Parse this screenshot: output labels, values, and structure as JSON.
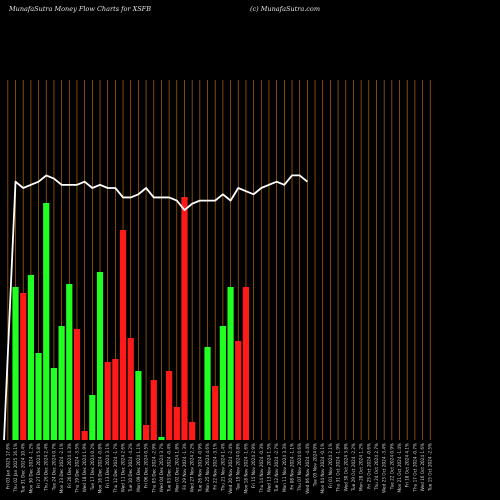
{
  "header": {
    "title": "MunafaSutra  Money Flow  Charts for XSFB",
    "site": "(c) MunafaSutra.com"
  },
  "colors": {
    "background": "#000000",
    "grid": "#b36a12",
    "up": "#22ff22",
    "down": "#ff1a1a",
    "line": "#ffffff"
  },
  "chart_data": {
    "type": "bar",
    "title": "MunafaSutra  Money Flow  Charts for XSFB",
    "xlabel": "",
    "ylabel": "",
    "grid": true,
    "bar_ylim": [
      0,
      100
    ],
    "line_ylim": [
      0,
      100
    ],
    "categories": [
      "Fri 03 Jan 2025",
      "Thu 02 Jan 2025",
      "Tue 31 Dec 2024",
      "Mon 30 Dec 2024",
      "Fri 27 Dec 2024",
      "Thu 26 Dec 2024",
      "Tue 24 Dec 2024",
      "Mon 23 Dec 2024",
      "Fri 20 Dec 2024",
      "Thu 19 Dec 2024",
      "Wed 18 Dec 2024",
      "Tue 17 Dec 2024",
      "Mon 16 Dec 2024",
      "Fri 13 Dec 2024",
      "Thu 12 Dec 2024",
      "Wed 11 Dec 2024",
      "Tue 10 Dec 2024",
      "Mon 09 Dec 2024",
      "Fri 06 Dec 2024",
      "Thu 05 Dec 2024",
      "Wed 04 Dec 2024",
      "Tue 03 Dec 2024",
      "Mon 02 Dec 2024",
      "Fri 29 Nov 2024",
      "Wed 27 Nov 2024",
      "Tue 26 Nov 2024",
      "Mon 25 Nov 2024",
      "Fri 22 Nov 2024",
      "Thu 21 Nov 2024",
      "Wed 20 Nov 2024",
      "Tue 19 Nov 2024",
      "Mon 18 Nov 2024",
      "Fri 15 Nov 2024",
      "Thu 14 Nov 2024",
      "Wed 13 Nov 2024",
      "Tue 12 Nov 2024",
      "Mon 11 Nov 2024",
      "Fri 08 Nov 2024",
      "Thu 07 Nov 2024",
      "Wed 06 Nov 2024",
      "Tue 05 Nov 2024",
      "Mon 04 Nov 2024",
      "Fri 01 Nov 2024",
      "Thu 31 Oct 2024",
      "Wed 30 Oct 2024",
      "Tue 29 Oct 2024",
      "Mon 28 Oct 2024",
      "Fri 25 Oct 2024",
      "Thu 24 Oct 2024",
      "Wed 23 Oct 2024",
      "Tue 22 Oct 2024",
      "Mon 21 Oct 2024",
      "Fri 18 Oct 2024",
      "Thu 17 Oct 2024",
      "Wed 16 Oct 2024",
      "Tue 15 Oct 2024"
    ],
    "x_tick_labels": [
      "Fri 03 Jan 2025 17.6%",
      "Thu 02 Jan 2025 16.1%",
      "Tue 31 Dec 2024 10.4%",
      "Mon 30 Dec 2024 -1.2%",
      "Fri 27 Dec 2024 5.8%",
      "Thu 26 Dec 2024 2.4%",
      "Tue 24 Dec 2024 0.7%",
      "Mon 23 Dec 2024 -2.1%",
      "Fri 20 Dec 2024 4.3%",
      "Thu 19 Dec 2024 -3.5%",
      "Wed 18 Dec 2024 1.9%",
      "Tue 17 Dec 2024 0.2%",
      "Mon 16 Dec 2024 -0.8%",
      "Fri 13 Dec 2024 3.1%",
      "Thu 12 Dec 2024 -1.7%",
      "Wed 11 Dec 2024 2.6%",
      "Tue 10 Dec 2024 -4.2%",
      "Mon 09 Dec 2024 1.1%",
      "Fri 06 Dec 2024 0.5%",
      "Thu 05 Dec 2024 -2.9%",
      "Wed 04 Dec 2024 3.7%",
      "Tue 03 Dec 2024 -0.4%",
      "Mon 02 Dec 2024 1.8%",
      "Fri 29 Nov 2024 -1.3%",
      "Wed 27 Nov 2024 2.2%",
      "Tue 26 Nov 2024 -0.9%",
      "Mon 25 Nov 2024 4.6%",
      "Fri 22 Nov 2024 -3.1%",
      "Thu 21 Nov 2024 1.4%",
      "Wed 20 Nov 2024 -2.4%",
      "Tue 19 Nov 2024 0.8%",
      "Mon 18 Nov 2024 -1.6%",
      "Fri 15 Nov 2024 2.9%",
      "Thu 14 Nov 2024 -0.3%",
      "Wed 13 Nov 2024 1.5%",
      "Tue 12 Nov 2024 -2.7%",
      "Mon 11 Nov 2024 3.3%",
      "Fri 08 Nov 2024 -1.1%",
      "Thu 07 Nov 2024 0.6%",
      "Wed 06 Nov 2024 -4.4%",
      "Tue 05 Nov 2024 0%",
      "Mon 04 Nov 2024 -0.1%",
      "Fri 01 Nov 2024 2.1%",
      "Thu 31 Oct 2024 -1.9%",
      "Wed 30 Oct 2024 3.8%",
      "Tue 29 Oct 2024 -2.2%",
      "Mon 28 Oct 2024 1.2%",
      "Fri 25 Oct 2024 -0.6%",
      "Thu 24 Oct 2024 2.7%",
      "Wed 23 Oct 2024 -3.4%",
      "Tue 22 Oct 2024 0.9%",
      "Mon 21 Oct 2024 -1.4%",
      "Fri 18 Oct 2024 4.1%",
      "Thu 17 Oct 2024 -0.7%",
      "Wed 16 Oct 2024 1.6%",
      "Tue 15 Oct 2024 -2.5%"
    ],
    "bar_values": [
      0,
      51,
      49,
      55,
      29,
      79,
      24,
      38,
      52,
      37,
      3,
      15,
      56,
      26,
      27,
      70,
      34,
      23,
      5,
      20,
      1,
      23,
      11,
      81,
      6,
      0,
      31,
      18,
      38,
      51,
      33,
      51,
      0,
      0,
      0,
      0,
      0,
      0,
      0,
      0,
      0,
      0,
      0,
      0,
      0,
      0,
      0,
      0,
      0,
      0,
      0,
      0,
      0,
      0,
      0,
      0
    ],
    "bar_colors": [
      "up",
      "up",
      "down",
      "up",
      "up",
      "up",
      "up",
      "up",
      "up",
      "down",
      "down",
      "up",
      "up",
      "down",
      "down",
      "down",
      "down",
      "up",
      "down",
      "down",
      "up",
      "down",
      "down",
      "down",
      "down",
      "up",
      "up",
      "down",
      "up",
      "up",
      "down",
      "down",
      "up",
      "up",
      "up",
      "up",
      "up",
      "up",
      "up",
      "up",
      "up",
      "up",
      "up",
      "up",
      "up",
      "up",
      "up",
      "up",
      "up",
      "up",
      "up",
      "up",
      "up",
      "up",
      "up",
      "up"
    ],
    "line_values": [
      0,
      82,
      80,
      81,
      82,
      84,
      83,
      81,
      81,
      81,
      82,
      80,
      81,
      80,
      80,
      77,
      77,
      78,
      80,
      77,
      77,
      77,
      76,
      73,
      75,
      76,
      76,
      76,
      78,
      76,
      80,
      79,
      78,
      80,
      81,
      82,
      81,
      84,
      84,
      82
    ]
  }
}
